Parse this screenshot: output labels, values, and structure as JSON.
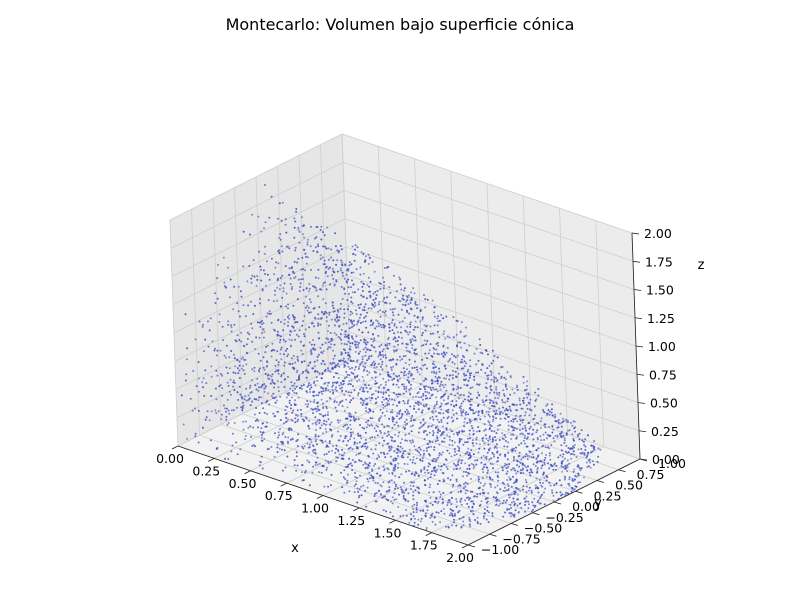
{
  "chart_data": {
    "type": "scatter",
    "projection": "3d",
    "title": "Montecarlo: Volumen bajo superficie cónica",
    "xlabel": "x",
    "ylabel": "y",
    "zlabel": "z",
    "xlim": [
      0,
      2
    ],
    "ylim": [
      -1,
      1
    ],
    "zlim": [
      0,
      2
    ],
    "x_ticks": [
      "0.00",
      "0.25",
      "0.50",
      "0.75",
      "1.00",
      "1.25",
      "1.50",
      "1.75",
      "2.00"
    ],
    "y_ticks": [
      "−1.00",
      "−0.75",
      "−0.50",
      "−0.25",
      "0.00",
      "0.25",
      "0.50",
      "0.75",
      "1.00"
    ],
    "z_ticks": [
      "0.00",
      "0.25",
      "0.50",
      "0.75",
      "1.00",
      "1.25",
      "1.50",
      "1.75",
      "2.00"
    ],
    "grid": true,
    "point_color": "#3b4cc0",
    "surface": "z = 2 - sqrt(x^2 + y^2)",
    "sample_count": 4000,
    "sampling": "uniform random in x∈[0,2], y∈[-1,1], z∈[0, 2 - sqrt(x^2 + y^2)]"
  }
}
